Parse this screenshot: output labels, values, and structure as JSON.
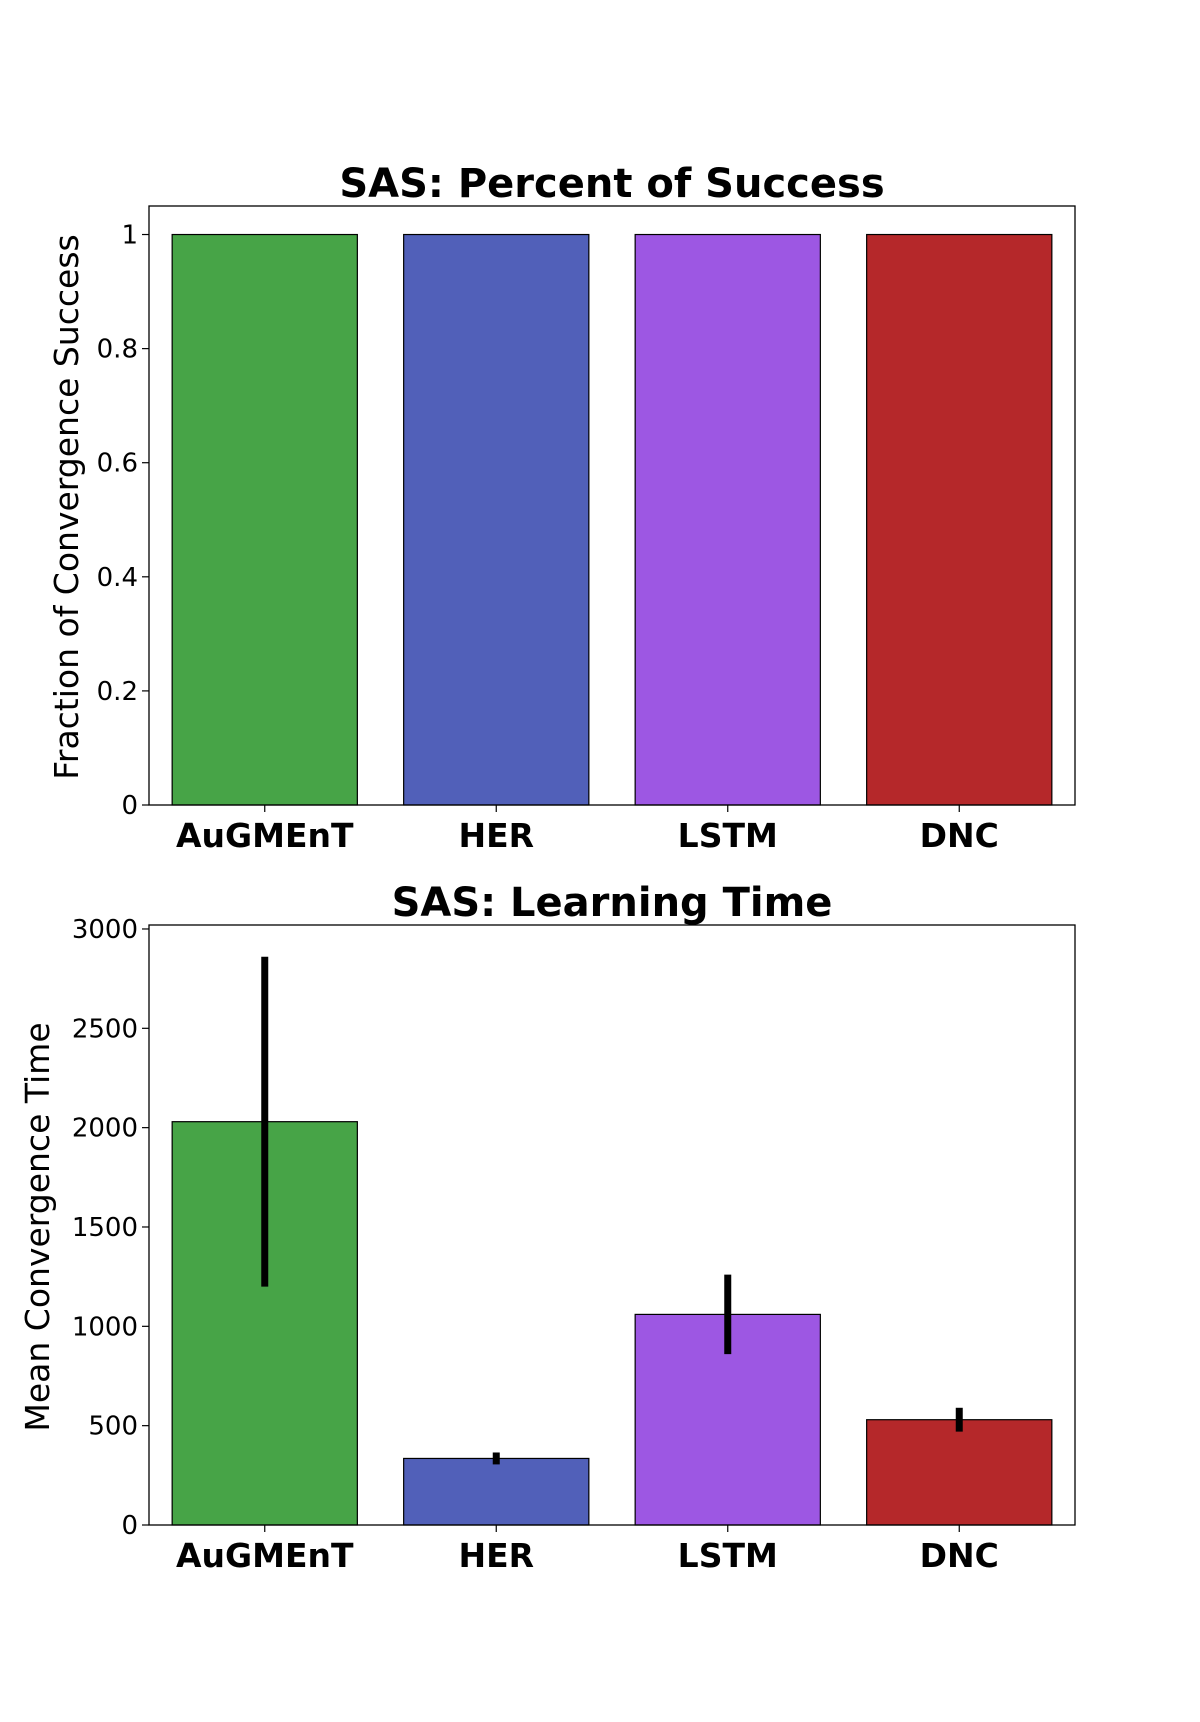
{
  "chart_data": [
    {
      "type": "bar",
      "title": "SAS: Percent of Success",
      "xlabel": "",
      "ylabel": "Fraction of Convergence Success",
      "categories": [
        "AuGMEnT",
        "HER",
        "LSTM",
        "DNC"
      ],
      "values": [
        1,
        1,
        1,
        1
      ],
      "colors": [
        "#47a447",
        "#5160b9",
        "#9d57e3",
        "#b5282a"
      ],
      "ylim": [
        0,
        1.05
      ],
      "yticks": [
        0,
        0.2,
        0.4,
        0.6,
        0.8,
        1
      ],
      "ytick_labels": [
        "0",
        "0.2",
        "0.4",
        "0.6",
        "0.8",
        "1"
      ],
      "grid": false
    },
    {
      "type": "bar",
      "title": "SAS: Learning Time",
      "xlabel": "",
      "ylabel": "Mean Convergence Time",
      "categories": [
        "AuGMEnT",
        "HER",
        "LSTM",
        "DNC"
      ],
      "values": [
        2030,
        335,
        1060,
        530
      ],
      "error": [
        830,
        30,
        200,
        60
      ],
      "colors": [
        "#47a447",
        "#5160b9",
        "#9d57e3",
        "#b5282a"
      ],
      "ylim": [
        0,
        3020
      ],
      "yticks": [
        0,
        500,
        1000,
        1500,
        2000,
        2500,
        3000
      ],
      "ytick_labels": [
        "0",
        "500",
        "1000",
        "1500",
        "2000",
        "2500",
        "3000"
      ],
      "grid": false
    }
  ]
}
